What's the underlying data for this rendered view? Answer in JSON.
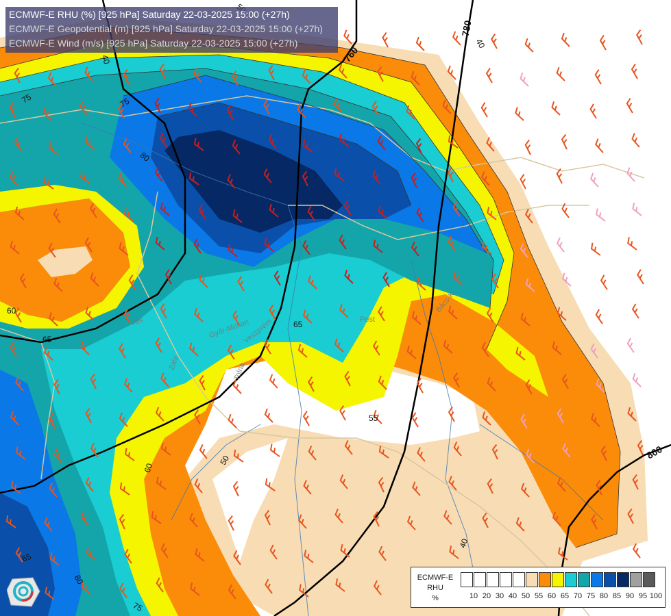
{
  "title": {
    "line1": "ECMWF-E RHU (%) [925 hPa] Saturday 22-03-2025 15:00 (+27h)",
    "line2": "ECMWF-E Geopotential (m) [925 hPa] Saturday 22-03-2025 15:00 (+27h)",
    "line3": "ECMWF-E Wind (m/s) [925 hPa] Saturday 22-03-2025 15:00 (+27h)"
  },
  "legend": {
    "model": "ECMWF-E",
    "variable": "RHU",
    "unit": "%",
    "ticks": [
      "10",
      "20",
      "30",
      "40",
      "50",
      "55",
      "60",
      "65",
      "70",
      "75",
      "80",
      "85",
      "90",
      "95",
      "100"
    ],
    "colors": [
      "#ffffff",
      "#ffffff",
      "#ffffff",
      "#ffffff",
      "#ffffff",
      "#f7dcb4",
      "#fa8c0a",
      "#f5f500",
      "#19cdd2",
      "#14a5aa",
      "#0a78e6",
      "#0a50aa",
      "#062864",
      "#a0a0a0",
      "#5a5a5a"
    ]
  },
  "contour_labels": {
    "geo_760": "760",
    "geo_780": "780",
    "geo_800": "800",
    "rh_40a": "40",
    "rh_40b": "40",
    "rh_40c": "40",
    "rh_50a": "50",
    "rh_50b": "50",
    "rh_55": "55",
    "rh_60a": "60",
    "rh_60b": "60",
    "rh_65a": "65",
    "rh_65b": "65",
    "rh_65c": "65",
    "rh_75a": "75",
    "rh_75b": "75",
    "rh_75c": "75",
    "rh_80a": "80",
    "rh_80b": "80"
  },
  "place_labels": {
    "p1": "Pest",
    "p2": "Bács-K",
    "p3": "Győr-Moson",
    "p4": "Tolna",
    "p5": "Vas",
    "p6": "Zala",
    "p7": "Veszprém"
  },
  "colors": {
    "bg": "#ffffff",
    "wind_barb": "#e8541e",
    "wind_barb_strong": "#c81e1e",
    "wind_barb_light": "#f0a0c0",
    "border": "#d8c8a0",
    "river": "#3c78b4",
    "geo_line": "#000000"
  }
}
